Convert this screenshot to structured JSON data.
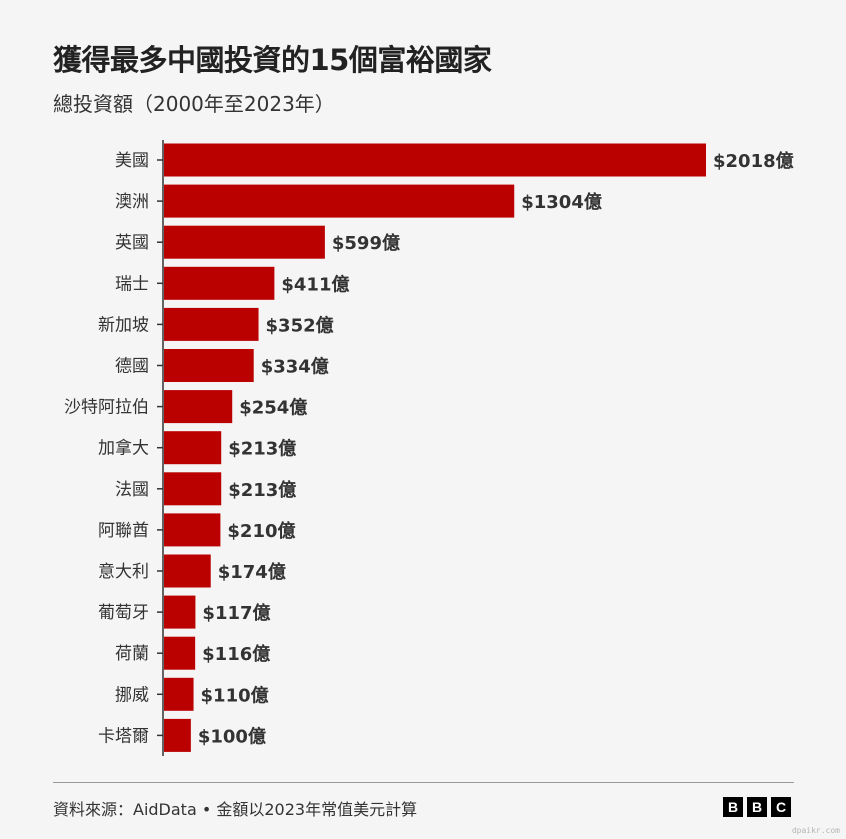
{
  "title": "獲得最多中國投資的15個富裕國家",
  "subtitle": "總投資額（2000年至2023年）",
  "source": "資料來源：AidData • 金額以2023年常值美元計算",
  "logo": [
    "B",
    "B",
    "C"
  ],
  "watermark": "dpaikr.com",
  "colors": {
    "bar": "#bb0000",
    "background": "#f5f5f5",
    "text": "#222222"
  },
  "chart_data": {
    "type": "bar",
    "orientation": "horizontal",
    "categories": [
      "美國",
      "澳洲",
      "英國",
      "瑞士",
      "新加坡",
      "德國",
      "沙特阿拉伯",
      "加拿大",
      "法國",
      "阿聯酋",
      "意大利",
      "葡萄牙",
      "荷蘭",
      "挪威",
      "卡塔爾"
    ],
    "values": [
      2018,
      1304,
      599,
      411,
      352,
      334,
      254,
      213,
      213,
      210,
      174,
      117,
      116,
      110,
      100
    ],
    "value_labels": [
      "$2018億",
      "$1304億",
      "$599億",
      "$411億",
      "$352億",
      "$334億",
      "$254億",
      "$213億",
      "$213億",
      "$210億",
      "$174億",
      "$117億",
      "$116億",
      "$110億",
      "$100億"
    ],
    "title": "獲得最多中國投資的15個富裕國家",
    "subtitle": "總投資額（2000年至2023年）",
    "xlim": [
      0,
      2018
    ],
    "grid": false
  }
}
